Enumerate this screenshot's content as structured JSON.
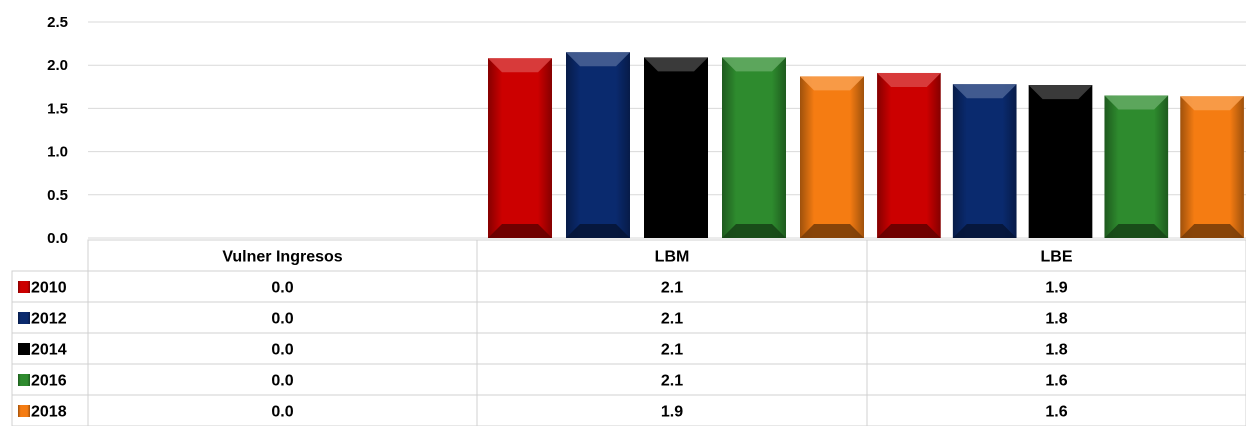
{
  "chart_data": {
    "type": "bar",
    "categories": [
      "Vulner Ingresos",
      "LBM",
      "LBE"
    ],
    "series": [
      {
        "name": "2010",
        "color": "#cc0000",
        "values": [
          0.0,
          2.08,
          1.91
        ],
        "labels": [
          "0.0",
          "2.1",
          "1.9"
        ]
      },
      {
        "name": "2012",
        "color": "#0a2a6e",
        "values": [
          0.0,
          2.15,
          1.78
        ],
        "labels": [
          "0.0",
          "2.1",
          "1.8"
        ]
      },
      {
        "name": "2014",
        "color": "#000000",
        "values": [
          0.0,
          2.09,
          1.77
        ],
        "labels": [
          "0.0",
          "2.1",
          "1.8"
        ]
      },
      {
        "name": "2016",
        "color": "#2e8b2e",
        "values": [
          0.0,
          2.09,
          1.65
        ],
        "labels": [
          "0.0",
          "2.1",
          "1.6"
        ]
      },
      {
        "name": "2018",
        "color": "#f57c12",
        "values": [
          0.0,
          1.87,
          1.64
        ],
        "labels": [
          "0.0",
          "1.9",
          "1.6"
        ]
      }
    ],
    "ylim": [
      0,
      2.5
    ],
    "yticks": [
      "0.0",
      "0.5",
      "1.0",
      "1.5",
      "2.0",
      "2.5"
    ],
    "grid": true,
    "legend": "data-table"
  }
}
